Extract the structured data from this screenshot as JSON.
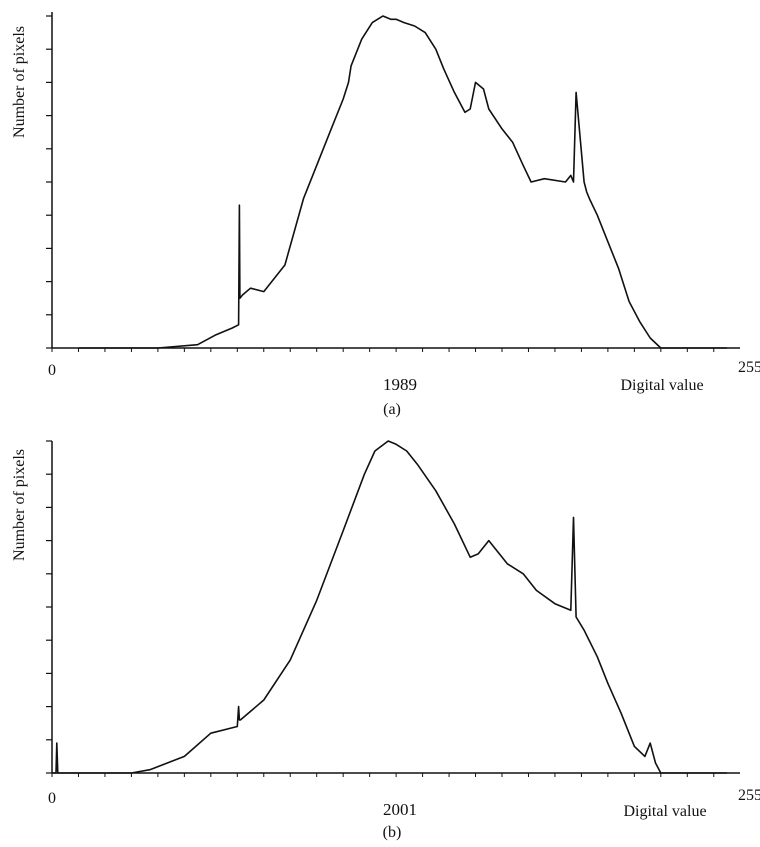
{
  "chart_data": [
    {
      "type": "line",
      "panel_label": "(a)",
      "year_label": "1989",
      "xlabel": "Digital value",
      "ylabel": "Number of pixels",
      "xlim": [
        0,
        255
      ],
      "ylim": [
        0,
        100
      ],
      "x_tick_labels": [
        "0",
        "255"
      ],
      "y_ticks": [
        0,
        10,
        20,
        30,
        40,
        50,
        60,
        70,
        80,
        90,
        100
      ],
      "grid": false,
      "series": [
        {
          "x": [
            10,
            20,
            40,
            55,
            62,
            68,
            70.5,
            70.8,
            71,
            72,
            75,
            80,
            88,
            95,
            100,
            105,
            110,
            112,
            113,
            117,
            121,
            125,
            128,
            130,
            133,
            137,
            141,
            145,
            148,
            152,
            156,
            158,
            160,
            163,
            165,
            170,
            174,
            178,
            181,
            186,
            194,
            196,
            197,
            198,
            201,
            202,
            203,
            206,
            210,
            214,
            218,
            222,
            226,
            230,
            235,
            240,
            245,
            255
          ],
          "y": [
            0,
            0,
            0,
            1,
            4,
            6,
            7,
            43,
            15,
            16,
            18,
            17,
            25,
            45,
            55,
            65,
            75,
            80,
            85,
            93,
            98,
            100,
            99,
            99,
            98,
            97,
            95,
            90,
            84,
            77,
            71,
            72,
            80,
            78,
            72,
            66,
            62,
            55,
            50,
            51,
            50,
            52,
            50,
            77,
            50,
            47,
            45,
            40,
            32,
            24,
            14,
            8,
            3,
            0,
            0,
            0,
            0,
            0
          ]
        }
      ]
    },
    {
      "type": "line",
      "panel_label": "(b)",
      "year_label": "2001",
      "xlabel": "Digital value",
      "ylabel": "Number of pixels",
      "xlim": [
        0,
        255
      ],
      "ylim": [
        0,
        100
      ],
      "x_tick_labels": [
        "0",
        "255"
      ],
      "y_ticks": [
        0,
        10,
        20,
        30,
        40,
        50,
        60,
        70,
        80,
        90,
        100
      ],
      "grid": false,
      "series": [
        {
          "x": [
            0,
            1.5,
            1.8,
            2.2,
            4,
            10,
            20,
            30,
            37,
            50,
            60,
            70,
            70.5,
            70.8,
            71.2,
            80,
            90,
            100,
            110,
            118,
            122,
            127,
            130,
            134,
            138,
            145,
            152,
            158,
            161,
            165,
            172,
            178,
            183,
            190,
            196,
            197,
            198,
            201,
            206,
            210,
            215,
            220,
            224,
            226,
            228,
            230,
            235,
            240,
            245,
            255
          ],
          "y": [
            0,
            0,
            9,
            0,
            0,
            0,
            0,
            0,
            1,
            5,
            12,
            14,
            20,
            16,
            16,
            22,
            34,
            52,
            73,
            90,
            97,
            100,
            99,
            97,
            93,
            85,
            75,
            65,
            66,
            70,
            63,
            60,
            55,
            51,
            49,
            77,
            47,
            43,
            35,
            27,
            18,
            8,
            5,
            9,
            3,
            0,
            0,
            0,
            0,
            0
          ]
        }
      ]
    }
  ]
}
